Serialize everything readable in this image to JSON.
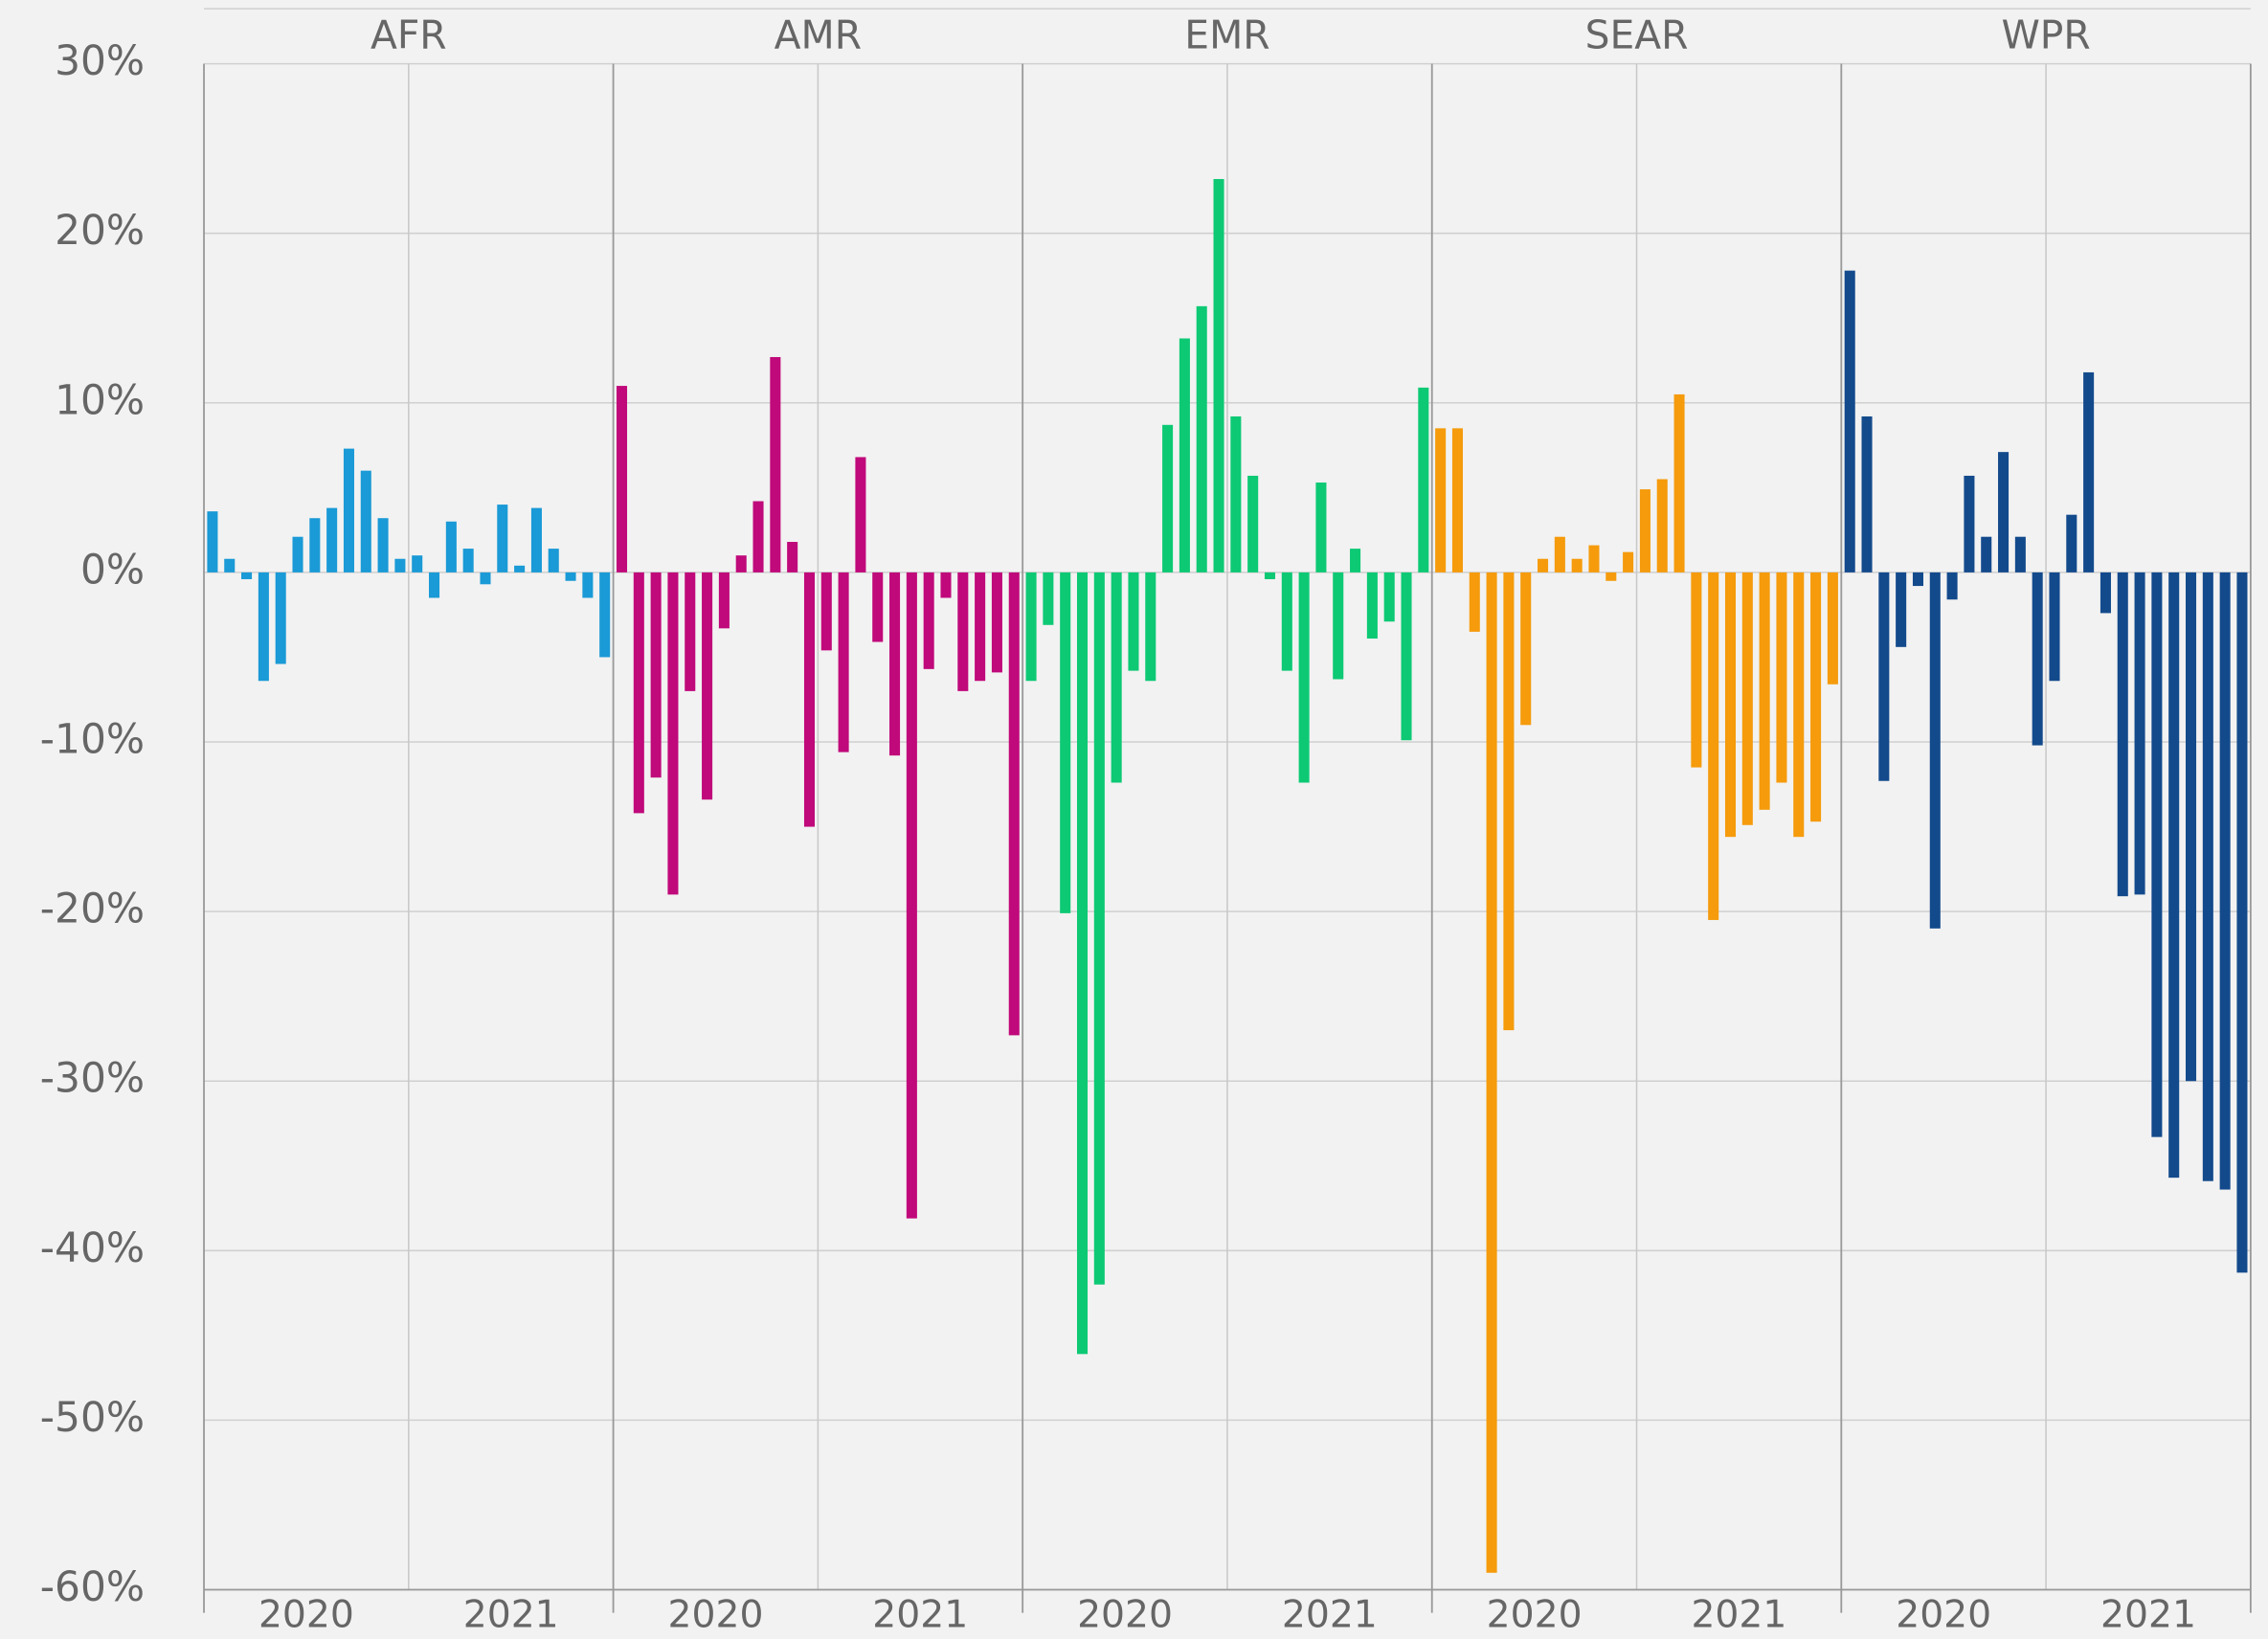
{
  "chart_data": {
    "type": "bar",
    "ylim": [
      -60,
      30
    ],
    "yticks": [
      {
        "value": 30,
        "label": "30%"
      },
      {
        "value": 20,
        "label": "20%"
      },
      {
        "value": 10,
        "label": "10%"
      },
      {
        "value": 0,
        "label": "0%"
      },
      {
        "value": -10,
        "label": "-10%"
      },
      {
        "value": -20,
        "label": "-20%"
      },
      {
        "value": -30,
        "label": "-30%"
      },
      {
        "value": -40,
        "label": "-40%"
      },
      {
        "value": -50,
        "label": "-50%"
      },
      {
        "value": -60,
        "label": "-60%"
      }
    ],
    "grid": true,
    "x_labels": [
      "2020",
      "2021"
    ],
    "series": [
      {
        "name": "AFR",
        "color": "#1a9ad6",
        "values": [
          3.6,
          0.8,
          -0.4,
          -6.4,
          -5.4,
          2.1,
          3.2,
          3.8,
          7.3,
          6.0,
          3.2,
          0.8,
          1.0,
          -1.5,
          3.0,
          1.4,
          -0.7,
          4.0,
          0.4,
          3.8,
          1.4,
          -0.5,
          -1.5,
          -5.0
        ]
      },
      {
        "name": "AMR",
        "color": "#c0097a",
        "values": [
          11.0,
          -14.2,
          -12.1,
          -19.0,
          -7.0,
          -13.4,
          -3.3,
          1.0,
          4.2,
          12.7,
          1.8,
          -15.0,
          -4.6,
          -10.6,
          6.8,
          -4.1,
          -10.8,
          -38.1,
          -5.7,
          -1.5,
          -7.0,
          -6.4,
          -5.9,
          -27.3
        ]
      },
      {
        "name": "EMR",
        "color": "#0dc974",
        "values": [
          -6.4,
          -3.1,
          -20.1,
          -46.1,
          -42.0,
          -12.4,
          -5.8,
          -6.4,
          8.7,
          13.8,
          15.7,
          23.2,
          9.2,
          5.7,
          -0.4,
          -5.8,
          -12.4,
          5.3,
          -6.3,
          1.4,
          -3.9,
          -2.9,
          -9.9,
          10.9
        ]
      },
      {
        "name": "SEAR",
        "color": "#f59b0c",
        "values": [
          8.5,
          8.5,
          -3.5,
          -59.0,
          -27.0,
          -9.0,
          0.8,
          2.1,
          0.8,
          1.6,
          -0.5,
          1.2,
          4.9,
          5.5,
          10.5,
          -11.5,
          -20.5,
          -15.6,
          -14.9,
          -14.0,
          -12.4,
          -15.6,
          -14.7,
          -6.6
        ]
      },
      {
        "name": "WPR",
        "color": "#134a8c",
        "values": [
          17.8,
          9.2,
          -12.3,
          -4.4,
          -0.8,
          -21.0,
          -1.6,
          5.7,
          2.1,
          7.1,
          2.1,
          -10.2,
          -6.4,
          3.4,
          11.8,
          -2.4,
          -19.1,
          -19.0,
          -33.3,
          -35.7,
          -30.0,
          -35.9,
          -36.4,
          -41.3
        ]
      }
    ]
  }
}
